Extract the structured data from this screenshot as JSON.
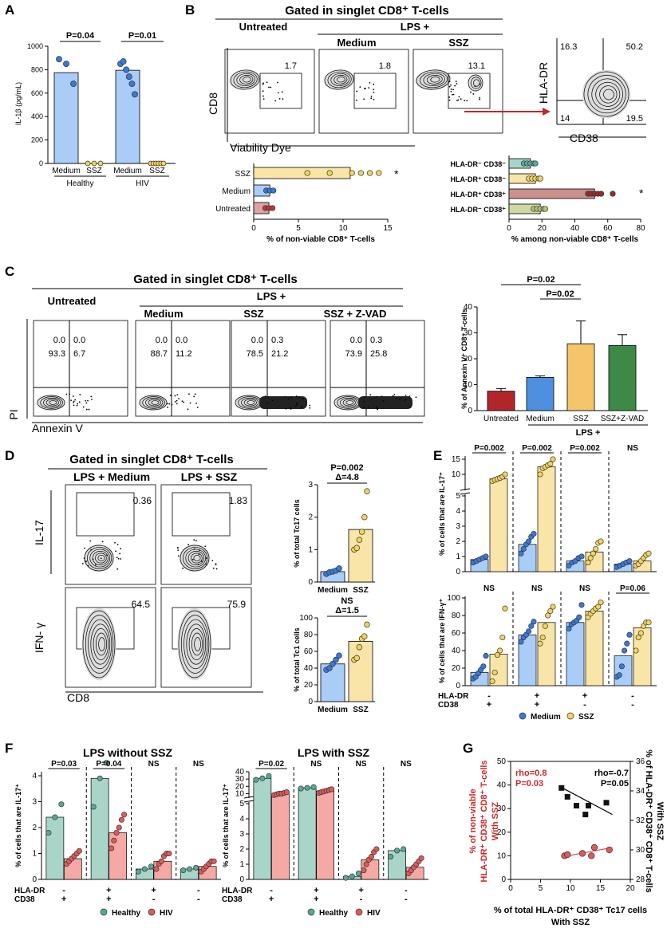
{
  "panelA": {
    "label": "A",
    "ylabel": "IL-1β (pg/mL)",
    "yticks": [
      "0",
      "200",
      "400",
      "600",
      "800",
      "1000"
    ],
    "ylim": [
      0,
      1000
    ],
    "bars": [
      {
        "group": "Healthy",
        "cond": "Medium",
        "value": 775,
        "color": "#a9cdf7",
        "dots": [
          890,
          850,
          680
        ]
      },
      {
        "group": "Healthy",
        "cond": "SSZ",
        "value": 0,
        "color": "#f9e5a8",
        "dots": [
          0,
          0,
          0
        ]
      },
      {
        "group": "HIV",
        "cond": "Medium",
        "value": 795,
        "color": "#a9cdf7",
        "dots": [
          850,
          870,
          800,
          740,
          680,
          590
        ]
      },
      {
        "group": "HIV",
        "cond": "SSZ",
        "value": 0,
        "color": "#f9e5a8",
        "dots": [
          0,
          0,
          0,
          0,
          0,
          0
        ]
      }
    ],
    "pvals": [
      "P=0.04",
      "P=0.01"
    ],
    "xlabels": [
      "Medium",
      "SSZ",
      "Medium",
      "SSZ"
    ],
    "groups": [
      "Healthy",
      "HIV"
    ]
  },
  "panelB": {
    "label": "B",
    "title": "Gated in singlet CD8⁺ T-cells",
    "cond_untreated": "Untreated",
    "cond_lps": "LPS +",
    "cond_medium": "Medium",
    "cond_ssz": "SSZ",
    "flow_values": [
      "1.7",
      "1.8",
      "13.1"
    ],
    "ylabel": "CD8",
    "xlabel": "Viability Dye",
    "quad": {
      "q1": "16.3",
      "q2": "50.2",
      "q3": "14",
      "q4": "19.5",
      "ylabel": "HLA-DR",
      "xlabel": "CD38"
    },
    "bar1": {
      "cats": [
        "SSZ",
        "Medium",
        "Untreated"
      ],
      "values": [
        10.8,
        1.8,
        1.7
      ],
      "colors": [
        "#f9e5a8",
        "#a9cdf7",
        "#e0a3a3"
      ],
      "xlim": [
        0,
        15
      ],
      "xticks": [
        "0",
        "5",
        "10",
        "15"
      ],
      "xlabel": "% of non-viable CD8⁺ T-cells",
      "sig": "*"
    },
    "bar2": {
      "cats": [
        "HLA-DR⁻ CD38⁻",
        "HLA-DR⁺ CD38⁻",
        "HLA-DR⁺ CD38⁺",
        "HLA-DR⁻ CD38⁺"
      ],
      "values": [
        13,
        16,
        52,
        19
      ],
      "colors": [
        "#a8d5c8",
        "#f9e5a8",
        "#c9908c",
        "#d2d8a4"
      ],
      "xlim": [
        0,
        80
      ],
      "xticks": [
        "0",
        "20",
        "40",
        "60",
        "80"
      ],
      "xlabel": "% among non-viable CD8⁺ T-cells",
      "sig": "*"
    }
  },
  "panelC": {
    "label": "C",
    "title": "Gated in singlet CD8⁺ T-cells",
    "conds": [
      "Untreated",
      "Medium",
      "SSZ",
      "SSZ + Z-VAD"
    ],
    "lps": "LPS +",
    "quads": [
      {
        "ul": "0.0",
        "ur": "0.0",
        "ll": "93.3",
        "lr": "6.7"
      },
      {
        "ul": "0.0",
        "ur": "0.0",
        "ll": "88.7",
        "lr": "11.2"
      },
      {
        "ul": "0.0",
        "ur": "0.3",
        "ll": "78.5",
        "lr": "21.2"
      },
      {
        "ul": "0.0",
        "ur": "0.3",
        "ll": "73.9",
        "lr": "25.8"
      }
    ],
    "ylabel": "PI",
    "xlabel": "Annexin V",
    "bar": {
      "ylabel": "% of Annexin V⁺ CD8⁺ T-cells",
      "yticks": [
        "0",
        "10",
        "20",
        "30",
        "40"
      ],
      "ylim": [
        0,
        40
      ],
      "cats": [
        "Untreated",
        "Medium",
        "SSZ",
        "SSZ+Z-VAD"
      ],
      "values": [
        7.5,
        12.8,
        25.8,
        25.1
      ],
      "errors": [
        1.0,
        0.6,
        8.8,
        4.2
      ],
      "colors": [
        "#b0262a",
        "#4f8fe0",
        "#f5c56a",
        "#3d8a46"
      ],
      "pvals": [
        "P=0.02",
        "P=0.02"
      ],
      "lps": "LPS +"
    }
  },
  "panelD": {
    "label": "D",
    "title": "Gated in singlet CD8⁺ T-cells",
    "conds": [
      "LPS + Medium",
      "LPS + SSZ"
    ],
    "il17": [
      "0.36",
      "1.83"
    ],
    "ifng": [
      "64.5",
      "75.9"
    ],
    "ylabels": [
      "IL-17",
      "IFN- γ"
    ],
    "xlabel": "CD8",
    "tc17": {
      "ylabel": "% of total Tc17 cells",
      "p": "P=0.002",
      "delta": "Δ=4.8",
      "yticks": [
        "0",
        "1",
        "2",
        "3"
      ],
      "ylim": [
        0,
        3
      ],
      "cats": [
        "Medium",
        "SSZ"
      ],
      "values": [
        0.32,
        1.62
      ],
      "dots": [
        [
          0.25,
          0.3,
          0.32,
          0.35,
          0.42
        ],
        [
          1.0,
          1.05,
          1.3,
          1.55,
          2.0,
          2.8
        ]
      ]
    },
    "tc1": {
      "ylabel": "% of total Tc1 cells",
      "p": "NS",
      "delta": "Δ=1.5",
      "yticks": [
        "0",
        "20",
        "40",
        "60",
        "80",
        "100"
      ],
      "ylim": [
        0,
        100
      ],
      "cats": [
        "Medium",
        "SSZ"
      ],
      "values": [
        45,
        72
      ],
      "dots": [
        [
          38,
          40,
          45,
          50,
          55
        ],
        [
          50,
          52,
          65,
          75,
          78,
          92
        ]
      ]
    }
  },
  "panelE": {
    "label": "E",
    "top": {
      "ylabel": "% of cells that are IL-17⁺",
      "pvals": [
        "P=0.002",
        "P=0.002",
        "P=0.002",
        "NS"
      ]
    },
    "bottom": {
      "ylabel": "% of cells that are IFN-γ⁺",
      "pvals": [
        "NS",
        "NS",
        "NS",
        "P=0.06"
      ],
      "yticks": [
        "0",
        "20",
        "40",
        "60",
        "80",
        "100"
      ]
    },
    "hla": [
      "-",
      "+",
      "+",
      "-"
    ],
    "cd38": [
      "+",
      "+",
      "-",
      "-"
    ],
    "hla_label": "HLA-DR",
    "cd38_label": "CD38",
    "legend": [
      "Medium",
      "SSZ"
    ]
  },
  "panelF": {
    "label": "F",
    "left": {
      "title": "LPS without SSZ",
      "ylabel": "% of cells that are IL-17⁺",
      "pvals": [
        "P=0.03",
        "P=0.04",
        "NS",
        "NS"
      ]
    },
    "right": {
      "title": "LPS with SSZ",
      "ylabel": "% of cells that are IL-17⁺",
      "pvals": [
        "P=0.02",
        "NS",
        "NS",
        "NS"
      ]
    },
    "hla": [
      "-",
      "+",
      "+",
      "-"
    ],
    "cd38": [
      "+",
      "+",
      "-",
      "-"
    ],
    "hla_label": "HLA-DR",
    "cd38_label": "CD38",
    "legend": [
      "Healthy",
      "HIV"
    ]
  },
  "panelG": {
    "label": "G",
    "ylabel_left": [
      "% of non-viable",
      "HLA-DR⁺ CD38⁺ CD8⁺ T-cells",
      "With SSZ"
    ],
    "ylabel_right": [
      "% of HLA-DR⁺ CD38⁺ CD8⁺ T-cells",
      "With SSZ"
    ],
    "xlabel": [
      "% of total HLA-DR⁺ CD38⁺ Tc17 cells",
      "With SSZ"
    ],
    "red": {
      "rho": "rho=0.8",
      "p": "P=0.03"
    },
    "black": {
      "rho": "rho=-0.7",
      "p": "P=0.05"
    },
    "xticks": [
      "0",
      "5",
      "10",
      "15",
      "20"
    ],
    "yticks_left": [
      "0",
      "10",
      "20",
      "30",
      "40",
      "50"
    ],
    "yticks_right": [
      "28",
      "30",
      "32",
      "34",
      "36"
    ]
  },
  "chart_data": [
    {
      "type": "bar",
      "title": "Panel A IL-1β",
      "categories": [
        "Healthy Medium",
        "Healthy SSZ",
        "HIV Medium",
        "HIV SSZ"
      ],
      "values": [
        775,
        0,
        795,
        0
      ],
      "ylabel": "IL-1β (pg/mL)",
      "ylim": [
        0,
        1000
      ]
    },
    {
      "type": "bar",
      "title": "Panel B non-viable CD8",
      "categories": [
        "SSZ",
        "Medium",
        "Untreated"
      ],
      "values": [
        10.8,
        1.8,
        1.7
      ],
      "xlabel": "% of non-viable CD8⁺ T-cells",
      "xlim": [
        0,
        15
      ]
    },
    {
      "type": "bar",
      "title": "Panel B non-viable subsets",
      "categories": [
        "HLA-DR⁻ CD38⁻",
        "HLA-DR⁺ CD38⁻",
        "HLA-DR⁺ CD38⁺",
        "HLA-DR⁻ CD38⁺"
      ],
      "values": [
        13,
        16,
        52,
        19
      ],
      "xlim": [
        0,
        80
      ]
    },
    {
      "type": "bar",
      "title": "Panel C Annexin V",
      "categories": [
        "Untreated",
        "Medium",
        "SSZ",
        "SSZ+Z-VAD"
      ],
      "values": [
        7.5,
        12.8,
        25.8,
        25.1
      ],
      "ylim": [
        0,
        40
      ]
    },
    {
      "type": "bar",
      "title": "Panel D Tc17",
      "categories": [
        "Medium",
        "SSZ"
      ],
      "values": [
        0.32,
        1.62
      ],
      "ylim": [
        0,
        3
      ]
    },
    {
      "type": "bar",
      "title": "Panel D Tc1",
      "categories": [
        "Medium",
        "SSZ"
      ],
      "values": [
        45,
        72
      ],
      "ylim": [
        0,
        100
      ]
    },
    {
      "type": "bar",
      "title": "Panel E IL-17",
      "categories": [
        "DR- CD38+",
        "DR+ CD38+",
        "DR+ CD38-",
        "DR- CD38-"
      ],
      "series": [
        {
          "name": "Medium",
          "values": [
            0.8,
            1.8,
            0.7,
            0.5
          ],
          "dots": [
            [
              0.6,
              0.7,
              0.8,
              0.9,
              1.0
            ],
            [
              1.2,
              1.5,
              1.8,
              2.0,
              2.3,
              2.5
            ],
            [
              0.4,
              0.6,
              0.7,
              0.9,
              1.0
            ],
            [
              0.3,
              0.4,
              0.5,
              0.6,
              0.7
            ]
          ]
        },
        {
          "name": "SSZ",
          "values": [
            8.5,
            12.5,
            1.3,
            0.7
          ],
          "dots": [
            [
              7.8,
              8.2,
              8.5,
              8.8,
              9.2,
              10.0
            ],
            [
              10.0,
              12.0,
              12.5,
              13.0,
              13.5,
              15.0
            ],
            [
              0.6,
              0.9,
              1.2,
              1.5,
              1.9,
              2.0
            ],
            [
              0.4,
              0.5,
              0.7,
              0.9,
              1.1,
              1.2
            ]
          ]
        }
      ]
    },
    {
      "type": "bar",
      "title": "Panel E IFN-γ",
      "categories": [
        "DR- CD38+",
        "DR+ CD38+",
        "DR+ CD38-",
        "DR- CD38-"
      ],
      "ylim": [
        0,
        100
      ],
      "series": [
        {
          "name": "Medium",
          "values": [
            15,
            58,
            72,
            34
          ],
          "dots": [
            [
              8,
              10,
              14,
              18,
              22,
              34
            ],
            [
              50,
              55,
              58,
              62,
              68,
              73
            ],
            [
              65,
              70,
              72,
              74,
              78,
              92
            ],
            [
              10,
              12,
              22,
              40,
              48,
              58
            ]
          ]
        },
        {
          "name": "SSZ",
          "values": [
            36,
            72,
            85,
            66
          ],
          "dots": [
            [
              5,
              15,
              35,
              40,
              55,
              88
            ],
            [
              48,
              55,
              68,
              80,
              85,
              90
            ],
            [
              78,
              82,
              85,
              88,
              90,
              95
            ],
            [
              40,
              55,
              60,
              68,
              72,
              72
            ]
          ]
        }
      ]
    },
    {
      "type": "bar",
      "title": "Panel F LPS without SSZ",
      "categories": [
        "DR- CD38+",
        "DR+ CD38+",
        "DR+ CD38-",
        "DR- CD38-"
      ],
      "series": [
        {
          "name": "Healthy",
          "values": [
            2.4,
            3.9,
            0.4,
            0.4
          ],
          "dots": [
            [
              1.8,
              2.4,
              2.9
            ],
            [
              2.8,
              3.9,
              4.5
            ],
            [
              0.3,
              0.4,
              0.5
            ],
            [
              0.35,
              0.4,
              0.45
            ]
          ]
        },
        {
          "name": "HIV",
          "values": [
            0.8,
            1.8,
            0.7,
            0.5
          ],
          "dots": [
            [
              0.6,
              0.7,
              0.8,
              0.9,
              1.0,
              1.1
            ],
            [
              1.2,
              1.5,
              1.8,
              2.0,
              2.3,
              2.5
            ],
            [
              0.4,
              0.6,
              0.7,
              0.9,
              1.0,
              1.0
            ],
            [
              0.3,
              0.4,
              0.5,
              0.6,
              0.7,
              0.7
            ]
          ]
        }
      ]
    },
    {
      "type": "bar",
      "title": "Panel F LPS with SSZ",
      "categories": [
        "DR- CD38+",
        "DR+ CD38+",
        "DR+ CD38-",
        "DR- CD38-"
      ],
      "series": [
        {
          "name": "Healthy",
          "values": [
            31,
            18,
            0.2,
            1.9
          ],
          "dots": [
            [
              29,
              31,
              34
            ],
            [
              17,
              18,
              19
            ],
            [
              0.1,
              0.2,
              0.4
            ],
            [
              1.5,
              1.9,
              2.0
            ]
          ]
        },
        {
          "name": "HIV",
          "values": [
            9.5,
            13.5,
            1.3,
            0.8
          ],
          "dots": [
            [
              8,
              9,
              10,
              10,
              11,
              12
            ],
            [
              11,
              12,
              13,
              14,
              15,
              16
            ],
            [
              0.6,
              1.0,
              1.3,
              1.5,
              1.8,
              2.0
            ],
            [
              0.4,
              0.6,
              0.8,
              1.0,
              1.2,
              1.4
            ]
          ]
        }
      ]
    },
    {
      "type": "scatter",
      "title": "Panel G correlation",
      "xlabel": "% of total HLA-DR⁺ CD38⁺ Tc17 cells With SSZ",
      "series": [
        {
          "name": "non-viable (red)",
          "x": [
            9,
            9.5,
            12,
            13.5,
            14,
            16.5
          ],
          "y": [
            10,
            10.5,
            11,
            10,
            13.5,
            12.5
          ]
        },
        {
          "name": "HLA-DR⁺CD38⁺ (black)",
          "x": [
            8.5,
            9.5,
            11,
            12.5,
            13,
            16
          ],
          "y": [
            34.2,
            33.6,
            33.0,
            32.4,
            33.0,
            33.2
          ]
        }
      ]
    }
  ]
}
